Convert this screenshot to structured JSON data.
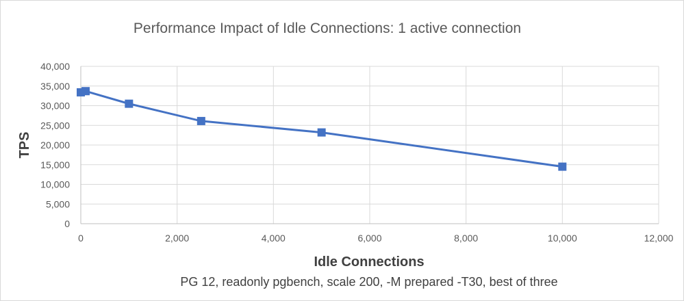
{
  "chart_data": {
    "type": "line",
    "title": "Performance Impact of Idle Connections: 1 active connection",
    "xlabel": "Idle Connections",
    "ylabel": "TPS",
    "subtitle": "PG 12, readonly pgbench, scale 200, -M prepared -T30, best of three",
    "xlim": [
      0,
      12000
    ],
    "ylim": [
      0,
      40000
    ],
    "x_ticks": [
      0,
      2000,
      4000,
      6000,
      8000,
      10000,
      12000
    ],
    "x_tick_labels": [
      "0",
      "2,000",
      "4,000",
      "6,000",
      "8,000",
      "10,000",
      "12,000"
    ],
    "y_ticks": [
      0,
      5000,
      10000,
      15000,
      20000,
      25000,
      30000,
      35000,
      40000
    ],
    "y_tick_labels": [
      "0",
      "5,000",
      "10,000",
      "15,000",
      "20,000",
      "25,000",
      "30,000",
      "35,000",
      "40,000"
    ],
    "grid": true,
    "series": [
      {
        "name": "TPS",
        "color": "#4472c4",
        "x": [
          0,
          100,
          1000,
          2500,
          5000,
          10000
        ],
        "y": [
          33400,
          33700,
          30500,
          26100,
          23200,
          14500
        ]
      }
    ]
  }
}
